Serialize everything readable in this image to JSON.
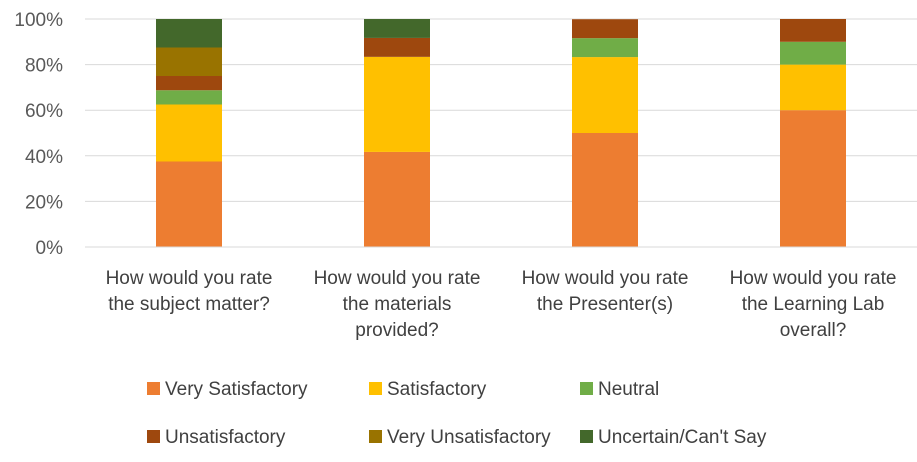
{
  "chart_data": {
    "type": "bar",
    "stacked": true,
    "percent_axis": true,
    "categories": [
      [
        "How would you rate",
        "the subject matter?"
      ],
      [
        "How would you rate",
        "the materials",
        "provided?"
      ],
      [
        "How would you rate",
        "the Presenter(s)"
      ],
      [
        "How would you rate",
        "the Learning Lab",
        "overall?"
      ]
    ],
    "series": [
      {
        "name": "Very Satisfactory",
        "color": "#ED7D31",
        "values": [
          37.5,
          41.7,
          50,
          60
        ]
      },
      {
        "name": "Satisfactory",
        "color": "#FFC000",
        "values": [
          25,
          41.7,
          33.3,
          20
        ]
      },
      {
        "name": "Neutral",
        "color": "#70AD47",
        "values": [
          6.25,
          0,
          8.3,
          10
        ]
      },
      {
        "name": "Unsatisfactory",
        "color": "#9E480E",
        "values": [
          6.25,
          8.3,
          8.3,
          10
        ]
      },
      {
        "name": "Very Unsatisfactory",
        "color": "#997300",
        "values": [
          12.5,
          0,
          0,
          0
        ]
      },
      {
        "name": "Uncertain/Can't Say",
        "color": "#43682B",
        "values": [
          12.5,
          8.3,
          0,
          0
        ]
      }
    ],
    "yticks": [
      "0%",
      "20%",
      "40%",
      "60%",
      "80%",
      "100%"
    ],
    "ylim": [
      0,
      100
    ],
    "grid": true,
    "legend_position": "bottom"
  }
}
